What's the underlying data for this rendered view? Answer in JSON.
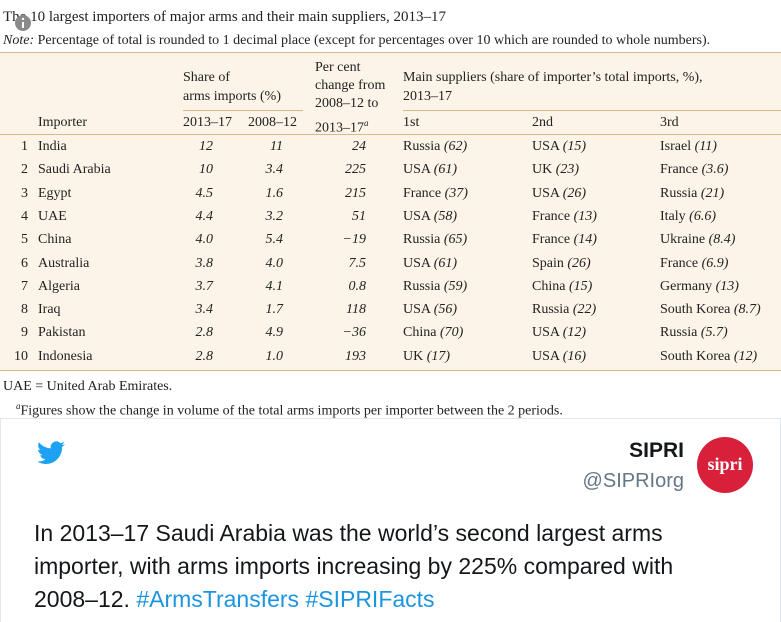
{
  "table": {
    "title": "The 10 largest importers of major arms and their main suppliers, 2013–17",
    "note_label": "Note:",
    "note_text": "Percentage of total is rounded to 1 decimal place (except for percentages over 10 which are rounded to whole numbers).",
    "headers": {
      "share": [
        "Share of",
        "arms imports (%)"
      ],
      "share_cols": [
        "2013–17",
        "2008–12"
      ],
      "change": [
        "Per cent",
        "change from",
        "2008–12 to",
        "2013–17"
      ],
      "change_sup": "a",
      "suppliers": [
        "Main suppliers (share of importer’s total imports, %),",
        "2013–17"
      ],
      "importer": "Importer",
      "supplier_cols": [
        "1st",
        "2nd",
        "3rd"
      ]
    },
    "rows": [
      [
        "1",
        "India",
        "12",
        "11",
        "24",
        [
          "Russia",
          "(62)"
        ],
        [
          "USA",
          "(15)"
        ],
        [
          "Israel",
          "(11)"
        ]
      ],
      [
        "2",
        "Saudi Arabia",
        "10",
        "3.4",
        "225",
        [
          "USA",
          "(61)"
        ],
        [
          "UK",
          "(23)"
        ],
        [
          "France",
          "(3.6)"
        ]
      ],
      [
        "3",
        "Egypt",
        "4.5",
        "1.6",
        "215",
        [
          "France",
          "(37)"
        ],
        [
          "USA",
          "(26)"
        ],
        [
          "Russia",
          "(21)"
        ]
      ],
      [
        "4",
        "UAE",
        "4.4",
        "3.2",
        "51",
        [
          "USA",
          "(58)"
        ],
        [
          "France",
          "(13)"
        ],
        [
          "Italy",
          "(6.6)"
        ]
      ],
      [
        "5",
        "China",
        "4.0",
        "5.4",
        "−19",
        [
          "Russia",
          "(65)"
        ],
        [
          "France",
          "(14)"
        ],
        [
          "Ukraine",
          "(8.4)"
        ]
      ],
      [
        "6",
        "Australia",
        "3.8",
        "4.0",
        "7.5",
        [
          "USA",
          "(61)"
        ],
        [
          "Spain",
          "(26)"
        ],
        [
          "France",
          "(6.9)"
        ]
      ],
      [
        "7",
        "Algeria",
        "3.7",
        "4.1",
        "0.8",
        [
          "Russia",
          "(59)"
        ],
        [
          "China",
          "(15)"
        ],
        [
          "Germany",
          "(13)"
        ]
      ],
      [
        "8",
        "Iraq",
        "3.4",
        "1.7",
        "118",
        [
          "USA",
          "(56)"
        ],
        [
          "Russia",
          "(22)"
        ],
        [
          "South Korea",
          "(8.7)"
        ]
      ],
      [
        "9",
        "Pakistan",
        "2.8",
        "4.9",
        "−36",
        [
          "China",
          "(70)"
        ],
        [
          "USA",
          "(12)"
        ],
        [
          "Russia",
          "(5.7)"
        ]
      ],
      [
        "10",
        "Indonesia",
        "2.8",
        "1.0",
        "193",
        [
          "UK",
          "(17)"
        ],
        [
          "USA",
          "(16)"
        ],
        [
          "South Korea",
          "(12)"
        ]
      ]
    ],
    "footnote_1": "UAE = United Arab Emirates.",
    "footnote_2_sup": "a",
    "footnote_2": "Figures show the change in volume of the total arms imports per importer between the 2 periods."
  },
  "tweet": {
    "name": "SIPRI",
    "handle": "@SIPRIorg",
    "logo_text": "sipri",
    "text": "In 2013–17 Saudi Arabia was the world’s second largest arms importer, with arms imports increasing by 225% compared with 2008–12.",
    "hashtags": [
      "#ArmsTransfers",
      "#SIPRIFacts"
    ]
  }
}
